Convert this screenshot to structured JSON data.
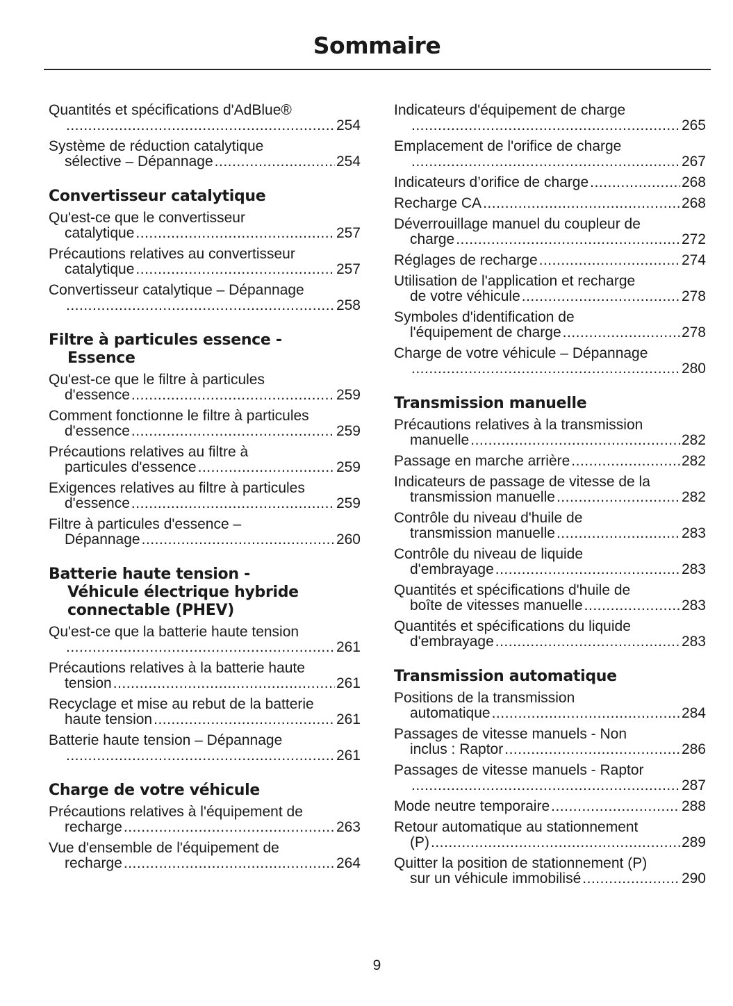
{
  "title": "Sommaire",
  "page_number": "9",
  "columns": [
    [
      {
        "type": "entry",
        "text": "Quantités et spécifications d'AdBlue®",
        "cont": "",
        "page": "254",
        "wrap": true
      },
      {
        "type": "entry",
        "text": "Système de réduction catalytique",
        "cont": "sélective – Dépannage",
        "page": "254",
        "wrap": true
      },
      {
        "type": "heading",
        "lines": [
          "Convertisseur catalytique"
        ]
      },
      {
        "type": "entry",
        "text": "Qu'est-ce que le convertisseur",
        "cont": "catalytique",
        "page": "257",
        "wrap": true
      },
      {
        "type": "entry",
        "text": "Précautions relatives au convertisseur",
        "cont": "catalytique",
        "page": "257",
        "wrap": true
      },
      {
        "type": "entry",
        "text": "Convertisseur catalytique – Dépannage",
        "cont": "",
        "page": "258",
        "wrap": true
      },
      {
        "type": "heading",
        "lines": [
          "Filtre à particules essence -",
          "Essence"
        ]
      },
      {
        "type": "entry",
        "text": "Qu'est-ce que le filtre à particules",
        "cont": "d'essence",
        "page": "259",
        "wrap": true
      },
      {
        "type": "entry",
        "text": "Comment fonctionne le filtre à particules",
        "cont": "d'essence",
        "page": "259",
        "wrap": true
      },
      {
        "type": "entry",
        "text": "Précautions relatives au filtre à",
        "cont": "particules d'essence",
        "page": "259",
        "wrap": true
      },
      {
        "type": "entry",
        "text": "Exigences relatives au filtre à particules",
        "cont": "d'essence",
        "page": "259",
        "wrap": true
      },
      {
        "type": "entry",
        "text": "Filtre à particules d'essence –",
        "cont": "Dépannage",
        "page": "260",
        "wrap": true
      },
      {
        "type": "heading",
        "lines": [
          "Batterie haute tension -",
          "Véhicule électrique hybride",
          "connectable (PHEV)"
        ]
      },
      {
        "type": "entry",
        "text": "Qu'est-ce que la batterie haute tension",
        "cont": "",
        "page": "261",
        "wrap": true
      },
      {
        "type": "entry",
        "text": "Précautions relatives à la batterie haute",
        "cont": "tension",
        "page": "261",
        "wrap": true
      },
      {
        "type": "entry",
        "text": "Recyclage et mise au rebut de la batterie",
        "cont": "haute tension",
        "page": "261",
        "wrap": true
      },
      {
        "type": "entry",
        "text": "Batterie haute tension – Dépannage",
        "cont": "",
        "page": "261",
        "wrap": true
      },
      {
        "type": "heading",
        "lines": [
          "Charge de votre véhicule"
        ]
      },
      {
        "type": "entry",
        "text": "Précautions relatives à l'équipement de",
        "cont": "recharge",
        "page": "263",
        "wrap": true
      },
      {
        "type": "entry",
        "text": "Vue d'ensemble de l'équipement de",
        "cont": "recharge",
        "page": "264",
        "wrap": true
      }
    ],
    [
      {
        "type": "entry",
        "text": "Indicateurs d'équipement de charge",
        "cont": "",
        "page": "265",
        "wrap": true
      },
      {
        "type": "entry",
        "text": "Emplacement de l'orifice de charge",
        "cont": "",
        "page": "267",
        "wrap": true
      },
      {
        "type": "entry",
        "text": "Indicateurs d’orifice de charge",
        "cont": "",
        "page": "268",
        "wrap": false
      },
      {
        "type": "entry",
        "text": "Recharge CA",
        "cont": "",
        "page": "268",
        "wrap": false
      },
      {
        "type": "entry",
        "text": "Déverrouillage manuel du coupleur de",
        "cont": "charge",
        "page": "272",
        "wrap": true
      },
      {
        "type": "entry",
        "text": "Réglages de recharge",
        "cont": "",
        "page": "274",
        "wrap": false
      },
      {
        "type": "entry",
        "text": "Utilisation de l'application et recharge",
        "cont": "de votre véhicule",
        "page": "278",
        "wrap": true
      },
      {
        "type": "entry",
        "text": "Symboles d'identification de",
        "cont": "l'équipement de charge",
        "page": "278",
        "wrap": true
      },
      {
        "type": "entry",
        "text": "Charge de votre véhicule – Dépannage",
        "cont": "",
        "page": "280",
        "wrap": true
      },
      {
        "type": "heading",
        "lines": [
          "Transmission manuelle"
        ]
      },
      {
        "type": "entry",
        "text": "Précautions relatives à la transmission",
        "cont": "manuelle",
        "page": "282",
        "wrap": true
      },
      {
        "type": "entry",
        "text": "Passage en marche arrière",
        "cont": "",
        "page": "282",
        "wrap": false
      },
      {
        "type": "entry",
        "text": "Indicateurs de passage de vitesse de la",
        "cont": "transmission manuelle",
        "page": "282",
        "wrap": true
      },
      {
        "type": "entry",
        "text": "Contrôle du niveau d'huile de",
        "cont": "transmission manuelle",
        "page": "283",
        "wrap": true
      },
      {
        "type": "entry",
        "text": "Contrôle du niveau de liquide",
        "cont": "d'embrayage",
        "page": "283",
        "wrap": true
      },
      {
        "type": "entry",
        "text": "Quantités et spécifications d'huile de",
        "cont": "boîte de vitesses manuelle",
        "page": "283",
        "wrap": true
      },
      {
        "type": "entry",
        "text": "Quantités et spécifications du liquide",
        "cont": "d'embrayage",
        "page": "283",
        "wrap": true
      },
      {
        "type": "heading",
        "lines": [
          "Transmission automatique"
        ]
      },
      {
        "type": "entry",
        "text": "Positions de la transmission",
        "cont": "automatique",
        "page": "284",
        "wrap": true
      },
      {
        "type": "entry",
        "text": "Passages de vitesse manuels - Non",
        "cont": "inclus : Raptor",
        "page": "286",
        "wrap": true
      },
      {
        "type": "entry",
        "text": "Passages de vitesse manuels - Raptor",
        "cont": "",
        "page": "287",
        "wrap": true
      },
      {
        "type": "entry",
        "text": "Mode neutre temporaire",
        "cont": "",
        "page": "288",
        "wrap": false
      },
      {
        "type": "entry",
        "text": "Retour automatique au stationnement",
        "cont": "(P)",
        "page": "289",
        "wrap": true
      },
      {
        "type": "entry",
        "text": "Quitter la position de stationnement (P)",
        "cont": "sur un véhicule immobilisé",
        "page": "290",
        "wrap": true
      }
    ]
  ]
}
